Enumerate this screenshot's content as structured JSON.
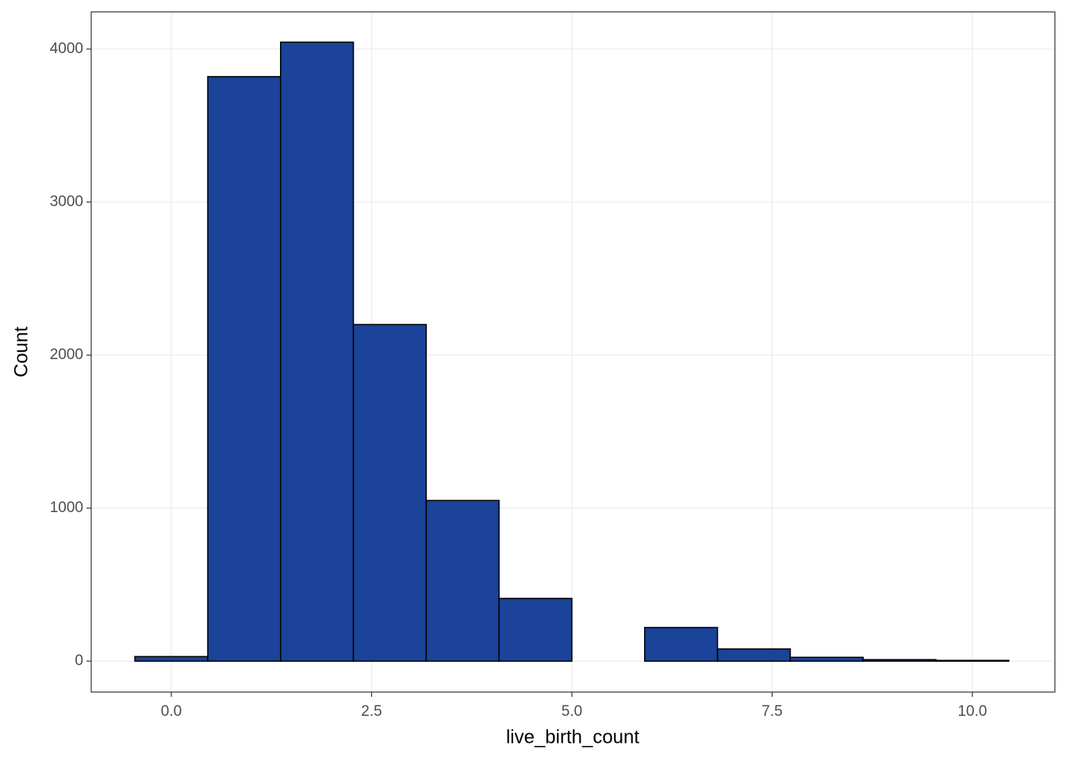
{
  "chart_data": {
    "type": "histogram",
    "x_label": "live_birth_count",
    "y_label": "Count",
    "bins": [
      -0.455,
      0.455,
      1.364,
      2.273,
      3.182,
      4.091,
      5.0,
      5.909,
      6.818,
      7.727,
      8.636,
      9.545,
      10.455
    ],
    "values": [
      30,
      3820,
      4045,
      2200,
      1050,
      410,
      0,
      220,
      80,
      25,
      10,
      5
    ],
    "color": "#1a4399",
    "edge_color": "#000000",
    "xlim": [
      -1.0,
      11.03
    ],
    "ylim": [
      -202,
      4243
    ],
    "xticks": [
      {
        "value": 0,
        "label": "0.0"
      },
      2.5,
      {
        "value": 5,
        "label": "5.0"
      },
      7.5,
      {
        "value": 10,
        "label": "10.0"
      }
    ],
    "yticks": [
      0,
      1000,
      2000,
      3000,
      4000
    ],
    "grid": true
  }
}
